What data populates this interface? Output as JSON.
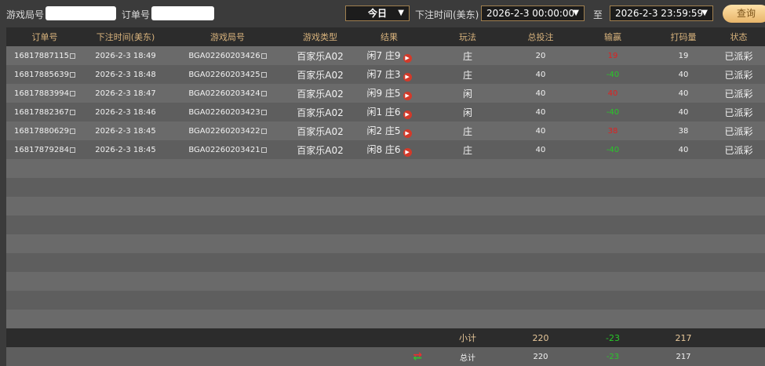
{
  "filters": {
    "round_label": "游戏局号",
    "round_value": "",
    "order_label": "订单号",
    "order_value": "",
    "period": "今日",
    "time_label": "下注时间(美东)",
    "start": "2026-2-3 00:00:00",
    "to_label": "至",
    "end": "2026-2-3 23:59:59",
    "query_button": "查询"
  },
  "table": {
    "headers": [
      "订单号",
      "下注时间(美东)",
      "游戏局号",
      "游戏类型",
      "结果",
      "玩法",
      "总投注",
      "输赢",
      "打码量",
      "状态"
    ],
    "rows": [
      [
        "16817887115",
        "2026-2-3 18:49",
        "BGA02260203426",
        "百家乐A02",
        "闲7 庄9",
        "庄",
        "20",
        "19",
        "19",
        "已派彩"
      ],
      [
        "16817885639",
        "2026-2-3 18:48",
        "BGA02260203425",
        "百家乐A02",
        "闲7 庄3",
        "庄",
        "40",
        "-40",
        "40",
        "已派彩"
      ],
      [
        "16817883994",
        "2026-2-3 18:47",
        "BGA02260203424",
        "百家乐A02",
        "闲9 庄5",
        "闲",
        "40",
        "40",
        "40",
        "已派彩"
      ],
      [
        "16817882367",
        "2026-2-3 18:46",
        "BGA02260203423",
        "百家乐A02",
        "闲1 庄6",
        "闲",
        "40",
        "-40",
        "40",
        "已派彩"
      ],
      [
        "16817880629",
        "2026-2-3 18:45",
        "BGA02260203422",
        "百家乐A02",
        "闲2 庄5",
        "庄",
        "40",
        "38",
        "38",
        "已派彩"
      ],
      [
        "16817879284",
        "2026-2-3 18:45",
        "BGA02260203421",
        "百家乐A02",
        "闲8 庄6",
        "庄",
        "40",
        "-40",
        "40",
        "已派彩"
      ]
    ],
    "subtotal": {
      "label": "小计",
      "bet": "220",
      "winloss": "-23",
      "valid": "217"
    },
    "total": {
      "label": "总计",
      "bet": "220",
      "winloss": "-23",
      "valid": "217"
    }
  },
  "colors": {
    "win": "#e02020",
    "loss": "#28c828",
    "header_text": "#d7b27c"
  }
}
